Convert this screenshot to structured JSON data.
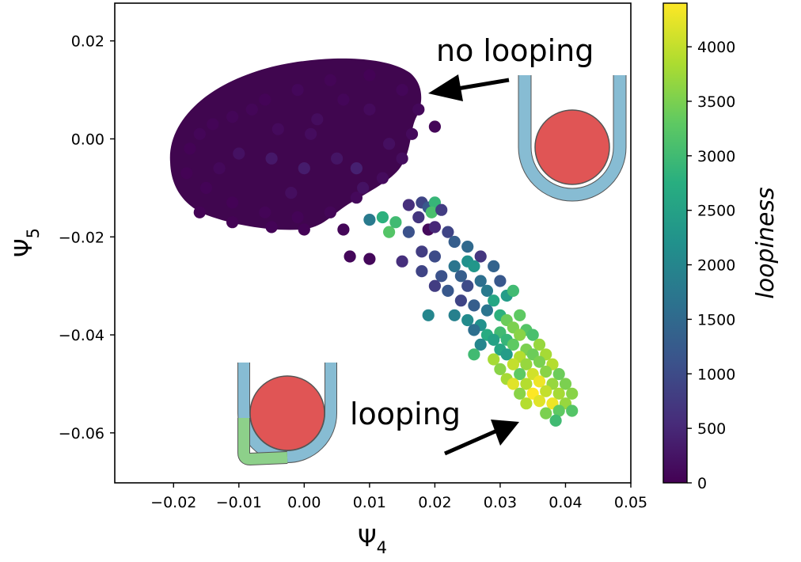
{
  "chart_data": {
    "type": "scatter",
    "title": "",
    "xlabel": "Ψ",
    "xlabel_sub": "4",
    "ylabel": "Ψ",
    "ylabel_sub": "5",
    "xlim": [
      -0.029,
      0.05
    ],
    "ylim": [
      -0.0702,
      0.0277
    ],
    "x_ticks": [
      -0.02,
      -0.01,
      0.0,
      0.01,
      0.02,
      0.03,
      0.04,
      0.05
    ],
    "x_tick_labels": [
      "−0.02",
      "−0.01",
      "0.00",
      "0.01",
      "0.02",
      "0.03",
      "0.04",
      "0.05"
    ],
    "y_ticks": [
      0.02,
      0.0,
      -0.02,
      -0.04,
      -0.06
    ],
    "y_tick_labels": [
      "0.02",
      "0.00",
      "−0.02",
      "−0.04",
      "−0.06"
    ],
    "grid": false,
    "colormap": "viridis",
    "colorbar": {
      "label": "loopiness",
      "range": [
        0,
        4400
      ],
      "ticks": [
        0,
        500,
        1000,
        1500,
        2000,
        2500,
        3000,
        3500,
        4000
      ],
      "tick_labels": [
        "0",
        "500",
        "1000",
        "1500",
        "2000",
        "2500",
        "3000",
        "3500",
        "4000"
      ]
    },
    "annotations": [
      {
        "text": "no looping",
        "arrow_from": [
          0.0312,
          0.0118
        ],
        "arrow_to": [
          0.0185,
          0.0093
        ]
      },
      {
        "text": "looping",
        "arrow_from": [
          0.0212,
          -0.0648
        ],
        "arrow_to": [
          0.0335,
          -0.0578
        ]
      }
    ],
    "insets": [
      "no-looping-diagram",
      "looping-diagram"
    ],
    "series": [
      {
        "points": [
          [
            -0.011,
            0.0045,
            60
          ],
          [
            -0.006,
            0.008,
            40
          ],
          [
            -0.001,
            0.01,
            80
          ],
          [
            0.004,
            0.012,
            50
          ],
          [
            0.01,
            0.013,
            30
          ],
          [
            0.015,
            0.01,
            70
          ],
          [
            0.0175,
            0.006,
            90
          ],
          [
            0.0165,
            0.001,
            120
          ],
          [
            0.015,
            -0.004,
            150
          ],
          [
            0.012,
            -0.008,
            130
          ],
          [
            0.008,
            -0.012,
            100
          ],
          [
            0.004,
            -0.015,
            60
          ],
          [
            -0.001,
            -0.016,
            40
          ],
          [
            -0.006,
            -0.015,
            50
          ],
          [
            -0.011,
            -0.013,
            30
          ],
          [
            -0.015,
            -0.01,
            40
          ],
          [
            -0.018,
            -0.007,
            20
          ],
          [
            -0.0175,
            -0.002,
            30
          ],
          [
            -0.016,
            0.001,
            60
          ],
          [
            -0.014,
            0.003,
            50
          ],
          [
            -0.01,
            -0.003,
            200
          ],
          [
            -0.005,
            -0.004,
            300
          ],
          [
            0.0,
            -0.006,
            350
          ],
          [
            0.005,
            -0.004,
            250
          ],
          [
            0.008,
            -0.006,
            400
          ],
          [
            0.002,
            0.004,
            150
          ],
          [
            -0.004,
            0.002,
            120
          ],
          [
            0.01,
            0.006,
            110
          ],
          [
            0.013,
            -0.001,
            180
          ],
          [
            -0.013,
            -0.006,
            90
          ],
          [
            0.006,
            0.008,
            70
          ],
          [
            -0.002,
            -0.011,
            160
          ],
          [
            0.009,
            -0.01,
            220
          ],
          [
            -0.008,
            0.006,
            60
          ],
          [
            0.001,
            0.001,
            140
          ],
          [
            -0.016,
            -0.015,
            30
          ],
          [
            -0.011,
            -0.017,
            20
          ],
          [
            -0.005,
            -0.018,
            40
          ],
          [
            0.0,
            -0.0185,
            30
          ],
          [
            0.006,
            -0.0185,
            60
          ],
          [
            0.02,
            0.0025,
            60
          ],
          [
            0.007,
            -0.024,
            80
          ],
          [
            0.01,
            -0.0245,
            90
          ],
          [
            0.019,
            -0.0185,
            120
          ],
          [
            0.012,
            -0.016,
            2800
          ],
          [
            0.013,
            -0.019,
            3200
          ],
          [
            0.014,
            -0.017,
            3000
          ],
          [
            0.01,
            -0.0165,
            1800
          ],
          [
            0.016,
            -0.0135,
            600
          ],
          [
            0.018,
            -0.013,
            900
          ],
          [
            0.019,
            -0.014,
            1200
          ],
          [
            0.02,
            -0.013,
            2900
          ],
          [
            0.0195,
            -0.015,
            3100
          ],
          [
            0.021,
            -0.0145,
            800
          ],
          [
            0.0175,
            -0.016,
            700
          ],
          [
            0.02,
            -0.018,
            500
          ],
          [
            0.016,
            -0.019,
            1100
          ],
          [
            0.022,
            -0.019,
            900
          ],
          [
            0.023,
            -0.021,
            1300
          ],
          [
            0.025,
            -0.022,
            1500
          ],
          [
            0.018,
            -0.023,
            800
          ],
          [
            0.02,
            -0.024,
            1000
          ],
          [
            0.023,
            -0.026,
            1700
          ],
          [
            0.025,
            -0.025,
            2200
          ],
          [
            0.027,
            -0.024,
            700
          ],
          [
            0.015,
            -0.025,
            600
          ],
          [
            0.018,
            -0.027,
            900
          ],
          [
            0.021,
            -0.028,
            1100
          ],
          [
            0.024,
            -0.028,
            1300
          ],
          [
            0.026,
            -0.026,
            2300
          ],
          [
            0.029,
            -0.026,
            1400
          ],
          [
            0.02,
            -0.03,
            800
          ],
          [
            0.022,
            -0.031,
            1200
          ],
          [
            0.025,
            -0.03,
            1000
          ],
          [
            0.027,
            -0.029,
            1600
          ],
          [
            0.028,
            -0.031,
            1800
          ],
          [
            0.03,
            -0.029,
            1200
          ],
          [
            0.024,
            -0.033,
            900
          ],
          [
            0.026,
            -0.034,
            1300
          ],
          [
            0.029,
            -0.033,
            2600
          ],
          [
            0.031,
            -0.032,
            2400
          ],
          [
            0.032,
            -0.031,
            3000
          ],
          [
            0.028,
            -0.035,
            1700
          ],
          [
            0.023,
            -0.036,
            1900
          ],
          [
            0.025,
            -0.037,
            2100
          ],
          [
            0.027,
            -0.038,
            2200
          ],
          [
            0.03,
            -0.036,
            2800
          ],
          [
            0.031,
            -0.037,
            3400
          ],
          [
            0.033,
            -0.036,
            3300
          ],
          [
            0.019,
            -0.036,
            2000
          ],
          [
            0.026,
            -0.039,
            1600
          ],
          [
            0.028,
            -0.04,
            2700
          ],
          [
            0.03,
            -0.0395,
            3000
          ],
          [
            0.032,
            -0.0385,
            3500
          ],
          [
            0.034,
            -0.039,
            3200
          ],
          [
            0.029,
            -0.041,
            2500
          ],
          [
            0.031,
            -0.041,
            2900
          ],
          [
            0.033,
            -0.04,
            3600
          ],
          [
            0.035,
            -0.04,
            3100
          ],
          [
            0.027,
            -0.042,
            2000
          ],
          [
            0.03,
            -0.043,
            2600
          ],
          [
            0.032,
            -0.042,
            3300
          ],
          [
            0.034,
            -0.043,
            3500
          ],
          [
            0.036,
            -0.042,
            3700
          ],
          [
            0.026,
            -0.044,
            3000
          ],
          [
            0.029,
            -0.045,
            3800
          ],
          [
            0.031,
            -0.044,
            2400
          ],
          [
            0.033,
            -0.0445,
            3900
          ],
          [
            0.035,
            -0.044,
            3400
          ],
          [
            0.037,
            -0.044,
            3800
          ],
          [
            0.03,
            -0.047,
            3600
          ],
          [
            0.032,
            -0.046,
            4000
          ],
          [
            0.034,
            -0.046,
            3700
          ],
          [
            0.036,
            -0.0455,
            3500
          ],
          [
            0.038,
            -0.046,
            3900
          ],
          [
            0.031,
            -0.049,
            3800
          ],
          [
            0.033,
            -0.048,
            3300
          ],
          [
            0.035,
            -0.048,
            4100
          ],
          [
            0.037,
            -0.0475,
            3600
          ],
          [
            0.039,
            -0.048,
            3400
          ],
          [
            0.032,
            -0.05,
            4200
          ],
          [
            0.034,
            -0.05,
            3900
          ],
          [
            0.036,
            -0.0495,
            4300
          ],
          [
            0.038,
            -0.05,
            3700
          ],
          [
            0.04,
            -0.05,
            3500
          ],
          [
            0.033,
            -0.052,
            3600
          ],
          [
            0.035,
            -0.052,
            4400
          ],
          [
            0.037,
            -0.0515,
            4000
          ],
          [
            0.039,
            -0.052,
            3800
          ],
          [
            0.041,
            -0.052,
            3600
          ],
          [
            0.034,
            -0.054,
            3900
          ],
          [
            0.036,
            -0.0535,
            4200
          ],
          [
            0.038,
            -0.054,
            4300
          ],
          [
            0.04,
            -0.054,
            3700
          ],
          [
            0.037,
            -0.056,
            3500
          ],
          [
            0.039,
            -0.0555,
            3300
          ],
          [
            0.041,
            -0.0555,
            3200
          ],
          [
            0.0385,
            -0.0575,
            3000
          ]
        ]
      }
    ]
  }
}
